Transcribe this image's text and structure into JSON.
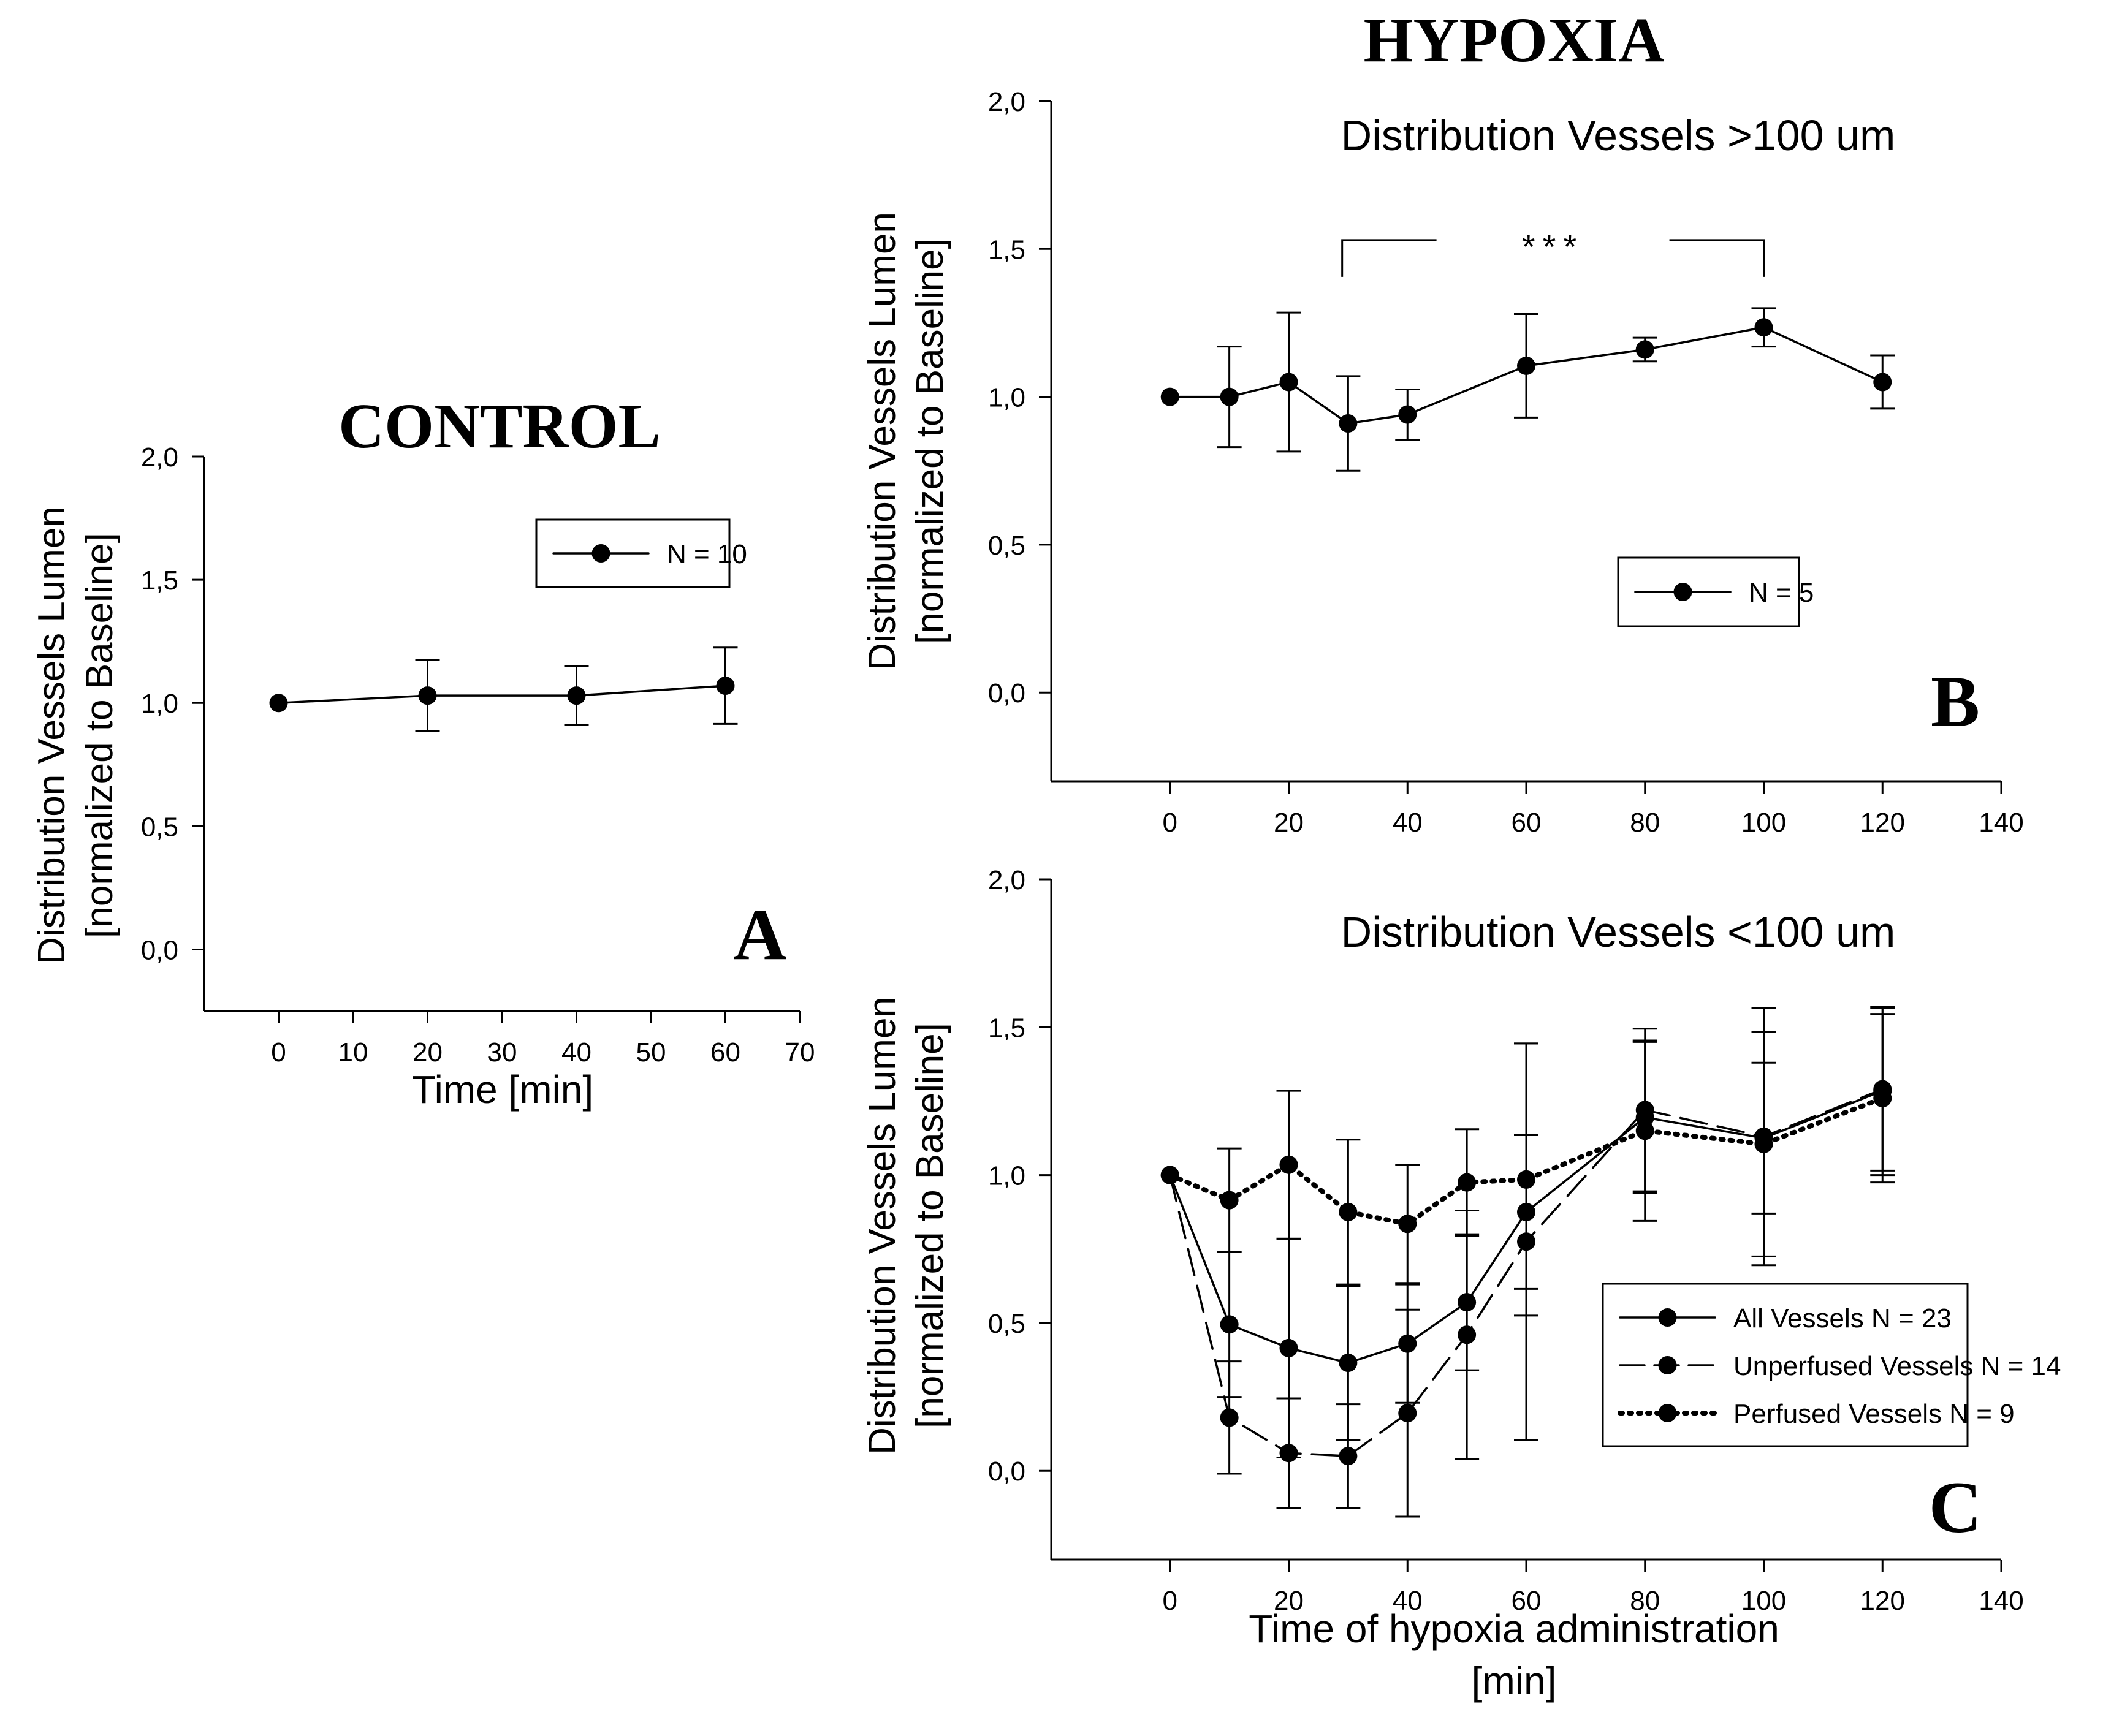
{
  "headings": {
    "control": "CONTROL",
    "hypoxia": "HYPOXIA"
  },
  "chart_data": [
    {
      "id": "A",
      "type": "line",
      "panel_letter": "A",
      "title": "",
      "ylabel_line1": "Distribution Vessels Lumen",
      "ylabel_line2": "[normalized to Baseline]",
      "xlabel": "Time [min]",
      "xlim": [
        -10,
        70
      ],
      "ylim": [
        -0.25,
        2.0
      ],
      "xticks": [
        0,
        10,
        20,
        30,
        40,
        50,
        60,
        70
      ],
      "xtick_labels": [
        "0",
        "10",
        "20",
        "30",
        "40",
        "50",
        "60",
        "70"
      ],
      "yticks": [
        0.0,
        0.5,
        1.0,
        1.5,
        2.0
      ],
      "ytick_labels": [
        "0,0",
        "0,5",
        "1,0",
        "1,5",
        "2,0"
      ],
      "legend_position": "top-right",
      "series": [
        {
          "name": "N = 10",
          "style": "solid",
          "x": [
            0,
            20,
            40,
            60
          ],
          "y": [
            1.0,
            1.03,
            1.03,
            1.07
          ],
          "err": [
            0.0,
            0.145,
            0.12,
            0.155
          ]
        }
      ]
    },
    {
      "id": "B",
      "type": "line",
      "panel_letter": "B",
      "title": "Distribution Vessels >100 um",
      "ylabel_line1": "Distribution Vessels Lumen",
      "ylabel_line2": "[normalized to Baseline]",
      "xlabel": "",
      "xlim": [
        -20,
        140
      ],
      "ylim": [
        -0.3,
        2.0
      ],
      "xticks": [
        0,
        20,
        40,
        60,
        80,
        100,
        120,
        140
      ],
      "xtick_labels": [
        "0",
        "20",
        "40",
        "60",
        "80",
        "100",
        "120",
        "140"
      ],
      "yticks": [
        0.0,
        0.5,
        1.0,
        1.5,
        2.0
      ],
      "ytick_labels": [
        "0,0",
        "0,5",
        "1,0",
        "1,5",
        "2,0"
      ],
      "legend_position": "middle-right",
      "significance": {
        "from": 29,
        "to": 100,
        "y": 1.53,
        "label": "***"
      },
      "series": [
        {
          "name": "N = 5",
          "style": "solid",
          "x": [
            0,
            10,
            20,
            30,
            40,
            60,
            80,
            100,
            120
          ],
          "y": [
            1.0,
            1.0,
            1.05,
            0.91,
            0.94,
            1.105,
            1.16,
            1.235,
            1.05
          ],
          "err": [
            0.0,
            0.17,
            0.235,
            0.16,
            0.085,
            0.175,
            0.04,
            0.065,
            0.09
          ]
        }
      ]
    },
    {
      "id": "C",
      "type": "line",
      "panel_letter": "C",
      "title": "Distribution Vessels <100 um",
      "ylabel_line1": "Distribution Vessels Lumen",
      "ylabel_line2": "[normalized to Baseline]",
      "xlabel_line1": "Time of hypoxia administration",
      "xlabel_line2": "[min]",
      "xlim": [
        -20,
        140
      ],
      "ylim": [
        -0.3,
        2.0
      ],
      "xticks": [
        0,
        20,
        40,
        60,
        80,
        100,
        120,
        140
      ],
      "xtick_labels": [
        "0",
        "20",
        "40",
        "60",
        "80",
        "100",
        "120",
        "140"
      ],
      "yticks": [
        0.0,
        0.5,
        1.0,
        1.5,
        2.0
      ],
      "ytick_labels": [
        "0,0",
        "0,5",
        "1,0",
        "1,5",
        "2,0"
      ],
      "legend_position": "bottom-right",
      "series": [
        {
          "name": "All Vessels N = 23",
          "style": "solid",
          "x": [
            0,
            10,
            20,
            30,
            40,
            50,
            60,
            80,
            100,
            120
          ],
          "y": [
            1.0,
            0.495,
            0.415,
            0.365,
            0.43,
            0.57,
            0.875,
            1.195,
            1.125,
            1.285
          ],
          "err": [
            0.0,
            0.245,
            0.37,
            0.26,
            0.2,
            0.23,
            0.26,
            0.255,
            0.255,
            0.285
          ]
        },
        {
          "name": "Unperfused Vessels N = 14",
          "style": "dashed",
          "x": [
            0,
            10,
            20,
            30,
            40,
            50,
            60,
            80,
            100,
            120
          ],
          "y": [
            1.0,
            0.18,
            0.06,
            0.05,
            0.195,
            0.46,
            0.775,
            1.22,
            1.13,
            1.29
          ],
          "err": [
            0.0,
            0.19,
            0.185,
            0.175,
            0.35,
            0.42,
            0.67,
            0.275,
            0.435,
            0.275
          ]
        },
        {
          "name": "Perfused Vessels N = 9",
          "style": "dotted",
          "x": [
            0,
            10,
            20,
            30,
            40,
            50,
            60,
            80,
            100,
            120
          ],
          "y": [
            1.0,
            0.915,
            1.035,
            0.875,
            0.835,
            0.975,
            0.985,
            1.15,
            1.105,
            1.26
          ],
          "err": [
            0.0,
            0.175,
            0.25,
            0.245,
            0.2,
            0.18,
            0.46,
            0.305,
            0.38,
            0.285
          ]
        }
      ]
    }
  ]
}
